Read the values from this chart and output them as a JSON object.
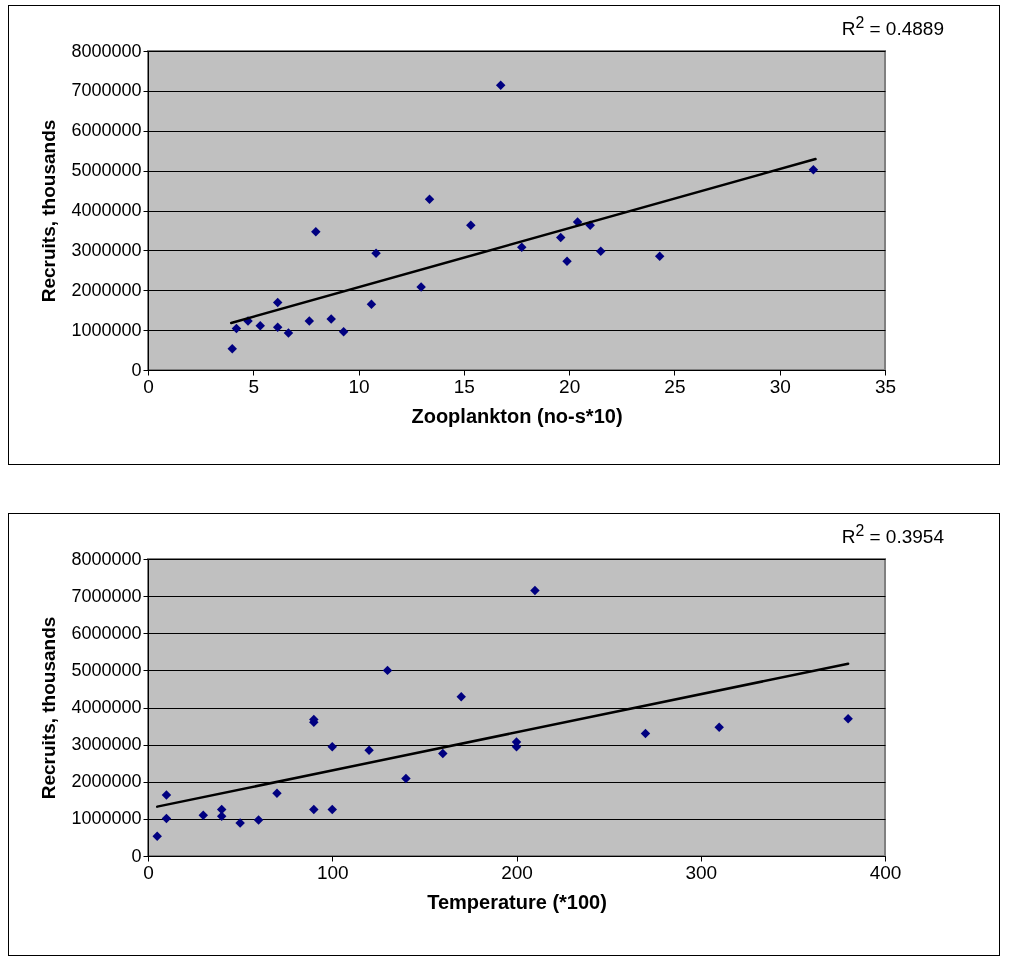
{
  "chart_data": [
    {
      "type": "scatter",
      "xlabel": "Zooplankton (no-s*10)",
      "ylabel": "Recruits, thousands",
      "annotations": [
        "R$^{2}$ = 0.4889"
      ],
      "xlim": [
        0,
        35
      ],
      "xticks": [
        0,
        5,
        10,
        15,
        20,
        25,
        30,
        35
      ],
      "ylim": [
        0,
        8000000
      ],
      "yticks": [
        0,
        1000000,
        2000000,
        3000000,
        4000000,
        5000000,
        6000000,
        7000000,
        8000000
      ],
      "grid": "y",
      "series": [
        {
          "color": "#000080",
          "marker": "diamond",
          "x": [
            4.0,
            4.2,
            4.75,
            5.33,
            6.16,
            6.16,
            6.67,
            7.66,
            7.97,
            8.7,
            9.29,
            10.61,
            10.83,
            12.97,
            13.37,
            15.33,
            16.75,
            17.75,
            19.6,
            19.9,
            20.4,
            21.0,
            21.5,
            24.3,
            31.6
          ],
          "values": [
            530000,
            1040000,
            1230000,
            1110000,
            1690000,
            1070000,
            930000,
            1230000,
            3470000,
            1280000,
            960000,
            1650000,
            2930000,
            2080000,
            4280000,
            3630000,
            7140000,
            3080000,
            3320000,
            2730000,
            3710000,
            3630000,
            2980000,
            2850000,
            5020000
          ]
        },
        {
          "type": "line",
          "color": "#000000",
          "x": [
            3.95,
            31.7
          ],
          "values": [
            1180000,
            5290000
          ]
        }
      ]
    },
    {
      "type": "scatter",
      "xlabel": "Temperature (*100)",
      "ylabel": "Recruits, thousands",
      "annotations": [
        "R$^{2}$ = 0.3954"
      ],
      "xlim": [
        0,
        400
      ],
      "xticks": [
        0,
        100,
        200,
        300,
        400
      ],
      "ylim": [
        0,
        8000000
      ],
      "yticks": [
        0,
        1000000,
        2000000,
        3000000,
        4000000,
        5000000,
        6000000,
        7000000,
        8000000
      ],
      "grid": "y",
      "series": [
        {
          "color": "#000080",
          "marker": "diamond",
          "x": [
            5,
            10,
            10,
            30,
            40,
            40,
            50,
            60,
            70,
            90,
            90,
            90,
            100,
            100,
            120,
            130,
            140,
            160,
            170,
            200,
            200,
            210,
            270,
            310,
            380
          ],
          "values": [
            530000,
            1010000,
            1640000,
            1100000,
            1250000,
            1070000,
            890000,
            970000,
            1690000,
            3600000,
            3680000,
            1250000,
            2940000,
            1250000,
            2850000,
            5000000,
            2090000,
            2760000,
            4290000,
            3070000,
            2940000,
            7150000,
            3300000,
            3470000,
            3700000
          ]
        },
        {
          "type": "line",
          "color": "#000000",
          "x": [
            5,
            380
          ],
          "values": [
            1330000,
            5180000
          ]
        }
      ]
    }
  ]
}
